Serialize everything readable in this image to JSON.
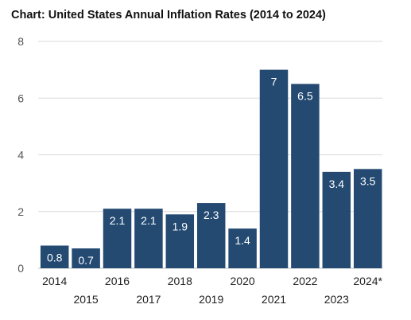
{
  "chart_data": {
    "type": "bar",
    "title": "Chart: United States Annual Inflation Rates (2014 to 2024)",
    "xlabel": "",
    "ylabel": "",
    "categories": [
      "2014",
      "2015",
      "2016",
      "2017",
      "2018",
      "2019",
      "2020",
      "2021",
      "2022",
      "2023",
      "2024*"
    ],
    "values": [
      0.8,
      0.7,
      2.1,
      2.1,
      1.9,
      2.3,
      1.4,
      7,
      6.5,
      3.4,
      3.5
    ],
    "data_labels": [
      "0.8",
      "0.7",
      "2.1",
      "2.1",
      "1.9",
      "2.3",
      "1.4",
      "7",
      "6.5",
      "3.4",
      "3.5"
    ],
    "ylim": [
      0,
      8
    ],
    "yticks": [
      0,
      2,
      4,
      6,
      8
    ],
    "grid": true,
    "legend": "none",
    "bar_color": "#244a72",
    "label_color": "#ffffff"
  }
}
